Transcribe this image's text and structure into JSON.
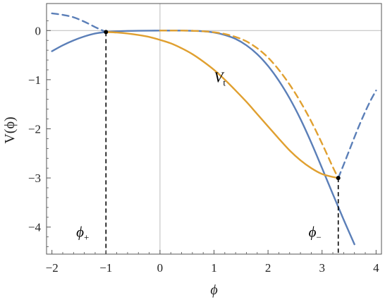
{
  "chart_data": {
    "type": "line",
    "xlabel": "ϕ",
    "ylabel": "V(ϕ)",
    "xlim": [
      -2.1,
      4.1
    ],
    "ylim": [
      -4.55,
      0.55
    ],
    "x_ticks": [
      -2,
      -1,
      0,
      1,
      2,
      3,
      4
    ],
    "x_tick_labels": [
      "−2",
      "−1",
      "0",
      "1",
      "2",
      "3",
      "4"
    ],
    "y_ticks": [
      0,
      -1,
      -2,
      -3,
      -4
    ],
    "y_tick_labels": [
      "0",
      "−1",
      "−2",
      "−3",
      "−4"
    ],
    "grid": false,
    "reference_lines": [
      {
        "axis": "x",
        "value": 0
      },
      {
        "axis": "y",
        "value": 0
      }
    ],
    "colors": {
      "blue": "#5b7fb8",
      "orange": "#e0a030",
      "axis": "#555555",
      "ref": "#bbbbbb"
    },
    "series": [
      {
        "color": "blue",
        "style": "solid",
        "x": [
          -2,
          -1.8,
          -1.6,
          -1.4,
          -1.2,
          -1.0,
          -0.8,
          -0.6,
          -0.4,
          -0.2,
          0,
          0.2,
          0.4,
          0.6,
          0.8,
          1.0,
          1.2,
          1.4,
          1.6,
          1.8,
          2.0,
          2.2,
          2.4,
          2.6,
          2.8,
          3.0,
          3.2,
          3.4,
          3.6
        ],
        "y": [
          -0.42,
          -0.3,
          -0.2,
          -0.12,
          -0.06,
          -0.03,
          -0.015,
          -0.008,
          -0.004,
          -0.002,
          -0.001,
          0.0,
          -0.001,
          -0.005,
          -0.015,
          -0.04,
          -0.09,
          -0.17,
          -0.3,
          -0.48,
          -0.72,
          -1.02,
          -1.38,
          -1.8,
          -2.28,
          -2.8,
          -3.33,
          -3.85,
          -4.35
        ]
      },
      {
        "color": "blue",
        "style": "dashed",
        "x": [
          -2,
          -1.8,
          -1.6,
          -1.4,
          -1.2,
          -1.0
        ],
        "y": [
          0.35,
          0.32,
          0.27,
          0.18,
          0.07,
          -0.03
        ]
      },
      {
        "color": "blue",
        "style": "dashed",
        "x": [
          3.3,
          3.4,
          3.5,
          3.6,
          3.7,
          3.8,
          3.9,
          4.0
        ],
        "y": [
          -3.0,
          -2.73,
          -2.45,
          -2.17,
          -1.9,
          -1.65,
          -1.42,
          -1.22
        ]
      },
      {
        "color": "orange",
        "style": "solid",
        "x": [
          -1.0,
          -0.8,
          -0.6,
          -0.4,
          -0.2,
          0,
          0.2,
          0.4,
          0.6,
          0.8,
          1.0,
          1.2,
          1.4,
          1.6,
          1.8,
          2.0,
          2.2,
          2.4,
          2.6,
          2.8,
          3.0,
          3.2,
          3.3
        ],
        "y": [
          -0.03,
          -0.04,
          -0.06,
          -0.09,
          -0.13,
          -0.19,
          -0.26,
          -0.36,
          -0.48,
          -0.63,
          -0.8,
          -1.0,
          -1.22,
          -1.45,
          -1.7,
          -1.95,
          -2.2,
          -2.44,
          -2.64,
          -2.8,
          -2.92,
          -2.98,
          -3.0
        ]
      },
      {
        "color": "orange",
        "style": "dashed",
        "x": [
          0,
          0.2,
          0.4,
          0.6,
          0.8,
          1.0,
          1.2,
          1.4,
          1.6,
          1.8,
          2.0,
          2.2,
          2.4,
          2.6,
          2.8,
          3.0,
          3.2,
          3.3
        ],
        "y": [
          0.0,
          0.0,
          -0.001,
          -0.005,
          -0.015,
          -0.035,
          -0.07,
          -0.13,
          -0.22,
          -0.36,
          -0.55,
          -0.8,
          -1.1,
          -1.45,
          -1.85,
          -2.3,
          -2.78,
          -3.0
        ]
      }
    ],
    "markers": [
      {
        "name": "phi-plus",
        "x": -1.0,
        "y": -0.03
      },
      {
        "name": "phi-minus",
        "x": 3.3,
        "y": -3.0
      }
    ],
    "vertical_dashed": [
      {
        "x": -1.0,
        "y_top": -0.03
      },
      {
        "x": 3.3,
        "y_top": -3.0
      }
    ],
    "annotations": [
      {
        "name": "vt",
        "main": "V",
        "sub": "t",
        "x": 1.0,
        "y": -1.05
      },
      {
        "name": "phi-plus-label",
        "main": "ϕ",
        "sub": "+",
        "x": -1.55,
        "y": -4.2
      },
      {
        "name": "phi-minus-label",
        "main": "ϕ",
        "sub": "−",
        "x": 2.75,
        "y": -4.2
      }
    ]
  }
}
